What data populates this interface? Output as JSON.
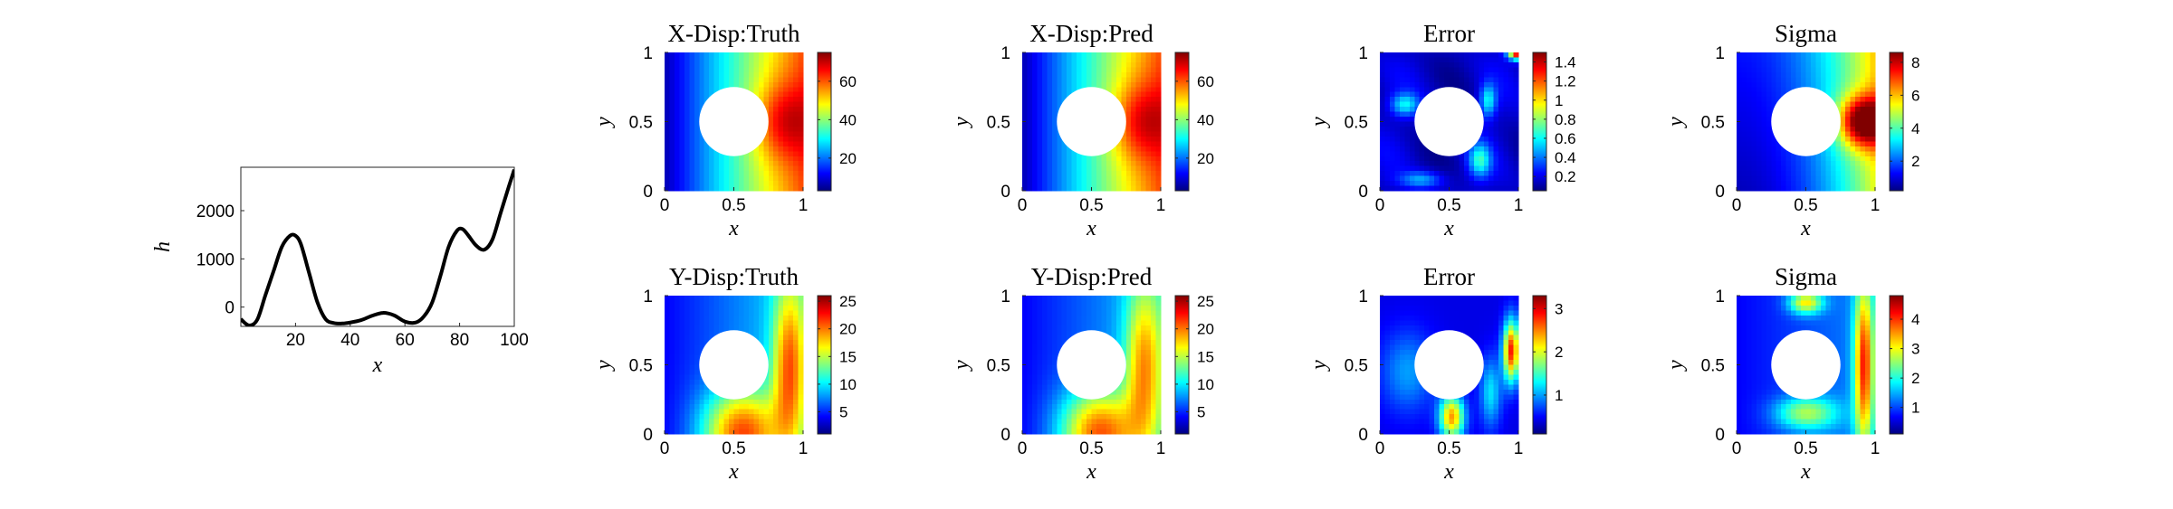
{
  "chart_data": [
    {
      "id": "h-profile",
      "type": "line",
      "xlabel": "x",
      "ylabel": "h",
      "xlim": [
        0,
        100
      ],
      "ylim": [
        -400,
        2900
      ],
      "x_ticks": [
        20,
        40,
        60,
        80,
        100
      ],
      "y_ticks": [
        0,
        1000,
        2000
      ],
      "x_tick_labels": [
        "20",
        "40",
        "60",
        "80",
        "100"
      ],
      "y_tick_labels": [
        "0",
        "1000",
        "2000"
      ],
      "grid": false,
      "series": [
        {
          "x": [
            0,
            3,
            6,
            9,
            12,
            15,
            18,
            20,
            22,
            25,
            28,
            31,
            34,
            37,
            40,
            44,
            48,
            52,
            56,
            60,
            64,
            67,
            70,
            73,
            76,
            79,
            81,
            83,
            86,
            89,
            92,
            95,
            98,
            100
          ],
          "values": [
            -250,
            -380,
            -260,
            250,
            750,
            1250,
            1480,
            1480,
            1300,
            700,
            100,
            -250,
            -330,
            -340,
            -320,
            -270,
            -180,
            -120,
            -170,
            -300,
            -320,
            -190,
            100,
            650,
            1250,
            1580,
            1620,
            1500,
            1280,
            1190,
            1400,
            1950,
            2500,
            2850
          ]
        }
      ],
      "line_color": "#000000"
    },
    {
      "id": "x-disp-truth",
      "type": "heatmap",
      "title": "X-Disp:Truth",
      "xlabel": "x",
      "ylabel": "y",
      "xlim": [
        0,
        1
      ],
      "ylim": [
        0,
        1
      ],
      "x_ticks": [
        0,
        0.5,
        1
      ],
      "y_ticks": [
        0,
        0.5,
        1
      ],
      "x_tick_labels": [
        "0",
        "0.5",
        "1"
      ],
      "y_tick_labels": [
        "0",
        "0.5",
        "1"
      ],
      "hole": {
        "cx": 0.5,
        "cy": 0.5,
        "r": 0.25
      },
      "colorbar": {
        "colormap": "jet",
        "min": 3,
        "max": 75,
        "ticks": [
          20,
          40,
          60
        ],
        "tick_labels": [
          "20",
          "40",
          "60"
        ]
      }
    },
    {
      "id": "x-disp-pred",
      "type": "heatmap",
      "title": "X-Disp:Pred",
      "xlabel": "x",
      "ylabel": "y",
      "xlim": [
        0,
        1
      ],
      "ylim": [
        0,
        1
      ],
      "x_ticks": [
        0,
        0.5,
        1
      ],
      "y_ticks": [
        0,
        0.5,
        1
      ],
      "x_tick_labels": [
        "0",
        "0.5",
        "1"
      ],
      "y_tick_labels": [
        "0",
        "0.5",
        "1"
      ],
      "hole": {
        "cx": 0.5,
        "cy": 0.5,
        "r": 0.25
      },
      "colorbar": {
        "colormap": "jet",
        "min": 3,
        "max": 75,
        "ticks": [
          20,
          40,
          60
        ],
        "tick_labels": [
          "20",
          "40",
          "60"
        ]
      }
    },
    {
      "id": "x-disp-error",
      "type": "heatmap",
      "title": "Error",
      "xlabel": "x",
      "ylabel": "y",
      "xlim": [
        0,
        1
      ],
      "ylim": [
        0,
        1
      ],
      "x_ticks": [
        0,
        0.5,
        1
      ],
      "y_ticks": [
        0,
        0.5,
        1
      ],
      "x_tick_labels": [
        "0",
        "0.5",
        "1"
      ],
      "y_tick_labels": [
        "0",
        "0.5",
        "1"
      ],
      "hole": {
        "cx": 0.5,
        "cy": 0.5,
        "r": 0.25
      },
      "colorbar": {
        "colormap": "jet",
        "min": 0.05,
        "max": 1.5,
        "ticks": [
          0.2,
          0.4,
          0.6,
          0.8,
          1,
          1.2,
          1.4
        ],
        "tick_labels": [
          "0.2",
          "0.4",
          "0.6",
          "0.8",
          "1",
          "1.2",
          "1.4"
        ]
      }
    },
    {
      "id": "x-disp-sigma",
      "type": "heatmap",
      "title": "Sigma",
      "xlabel": "x",
      "ylabel": "y",
      "xlim": [
        0,
        1
      ],
      "ylim": [
        0,
        1
      ],
      "x_ticks": [
        0,
        0.5,
        1
      ],
      "y_ticks": [
        0,
        0.5,
        1
      ],
      "x_tick_labels": [
        "0",
        "0.5",
        "1"
      ],
      "y_tick_labels": [
        "0",
        "0.5",
        "1"
      ],
      "hole": {
        "cx": 0.5,
        "cy": 0.5,
        "r": 0.25
      },
      "colorbar": {
        "colormap": "jet",
        "min": 0.2,
        "max": 8.6,
        "ticks": [
          2,
          4,
          6,
          8
        ],
        "tick_labels": [
          "2",
          "4",
          "6",
          "8"
        ]
      }
    },
    {
      "id": "y-disp-truth",
      "type": "heatmap",
      "title": "Y-Disp:Truth",
      "xlabel": "x",
      "ylabel": "y",
      "xlim": [
        0,
        1
      ],
      "ylim": [
        0,
        1
      ],
      "x_ticks": [
        0,
        0.5,
        1
      ],
      "y_ticks": [
        0,
        0.5,
        1
      ],
      "x_tick_labels": [
        "0",
        "0.5",
        "1"
      ],
      "y_tick_labels": [
        "0",
        "0.5",
        "1"
      ],
      "hole": {
        "cx": 0.5,
        "cy": 0.5,
        "r": 0.25
      },
      "colorbar": {
        "colormap": "jet",
        "min": 1,
        "max": 26,
        "ticks": [
          5,
          10,
          15,
          20,
          25
        ],
        "tick_labels": [
          "5",
          "10",
          "15",
          "20",
          "25"
        ]
      }
    },
    {
      "id": "y-disp-pred",
      "type": "heatmap",
      "title": "Y-Disp:Pred",
      "xlabel": "x",
      "ylabel": "y",
      "xlim": [
        0,
        1
      ],
      "ylim": [
        0,
        1
      ],
      "x_ticks": [
        0,
        0.5,
        1
      ],
      "y_ticks": [
        0,
        0.5,
        1
      ],
      "x_tick_labels": [
        "0",
        "0.5",
        "1"
      ],
      "y_tick_labels": [
        "0",
        "0.5",
        "1"
      ],
      "hole": {
        "cx": 0.5,
        "cy": 0.5,
        "r": 0.25
      },
      "colorbar": {
        "colormap": "jet",
        "min": 1,
        "max": 26,
        "ticks": [
          5,
          10,
          15,
          20,
          25
        ],
        "tick_labels": [
          "5",
          "10",
          "15",
          "20",
          "25"
        ]
      }
    },
    {
      "id": "y-disp-error",
      "type": "heatmap",
      "title": "Error",
      "xlabel": "x",
      "ylabel": "y",
      "xlim": [
        0,
        1
      ],
      "ylim": [
        0,
        1
      ],
      "x_ticks": [
        0,
        0.5,
        1
      ],
      "y_ticks": [
        0,
        0.5,
        1
      ],
      "x_tick_labels": [
        "0",
        "0.5",
        "1"
      ],
      "y_tick_labels": [
        "0",
        "0.5",
        "1"
      ],
      "hole": {
        "cx": 0.5,
        "cy": 0.5,
        "r": 0.25
      },
      "colorbar": {
        "colormap": "jet",
        "min": 0.1,
        "max": 3.3,
        "ticks": [
          1,
          2,
          3
        ],
        "tick_labels": [
          "1",
          "2",
          "3"
        ]
      }
    },
    {
      "id": "y-disp-sigma",
      "type": "heatmap",
      "title": "Sigma",
      "xlabel": "x",
      "ylabel": "y",
      "xlim": [
        0,
        1
      ],
      "ylim": [
        0,
        1
      ],
      "x_ticks": [
        0,
        0.5,
        1
      ],
      "y_ticks": [
        0,
        0.5,
        1
      ],
      "x_tick_labels": [
        "0",
        "0.5",
        "1"
      ],
      "y_tick_labels": [
        "0",
        "0.5",
        "1"
      ],
      "hole": {
        "cx": 0.5,
        "cy": 0.5,
        "r": 0.25
      },
      "colorbar": {
        "colormap": "jet",
        "min": 0.1,
        "max": 4.8,
        "ticks": [
          1,
          2,
          3,
          4
        ],
        "tick_labels": [
          "1",
          "2",
          "3",
          "4"
        ]
      }
    }
  ]
}
